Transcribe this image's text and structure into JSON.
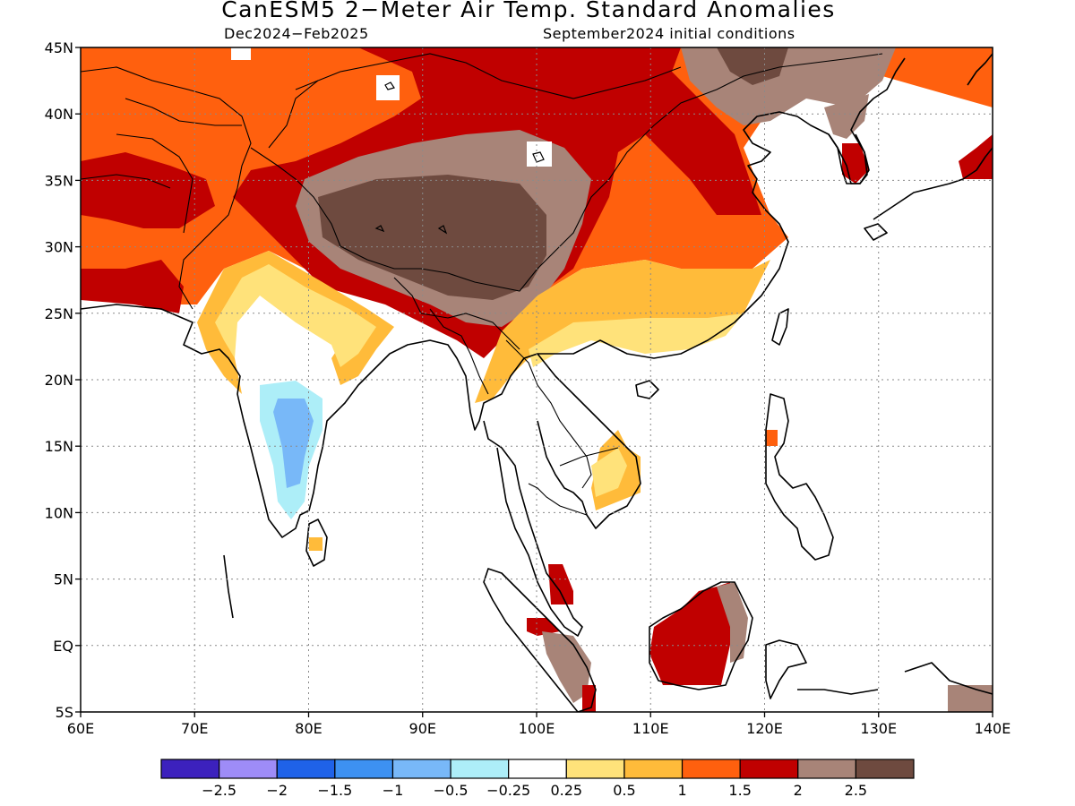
{
  "header": {
    "title": "CanESM5 2−Meter Air Temp. Standard Anomalies",
    "period": "Dec2024−Feb2025",
    "init": "September2024 initial conditions"
  },
  "map": {
    "lon_range": [
      60,
      140
    ],
    "lat_range": [
      -5,
      45
    ],
    "lon_ticks": [
      "60E",
      "70E",
      "80E",
      "90E",
      "100E",
      "110E",
      "120E",
      "130E",
      "140E"
    ],
    "lat_ticks": [
      "45N",
      "40N",
      "35N",
      "30N",
      "25N",
      "20N",
      "15N",
      "10N",
      "5N",
      "EQ",
      "5S"
    ]
  },
  "legend": {
    "colors": [
      "#3c21bd",
      "#9e8cf7",
      "#1f62e8",
      "#3d91f2",
      "#78b8f8",
      "#adeef8",
      "#ffffff",
      "#ffe27a",
      "#ffbb3a",
      "#ff600e",
      "#c00000",
      "#a88478",
      "#6e4a3f"
    ],
    "labels": [
      "−2.5",
      "−2",
      "−1.5",
      "−1",
      "−0.5",
      "−0.25",
      "0.25",
      "0.5",
      "1",
      "1.5",
      "2",
      "2.5"
    ]
  }
}
